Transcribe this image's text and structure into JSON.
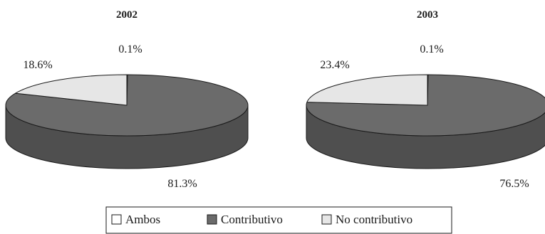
{
  "chart_data": {
    "type": "pie",
    "categories": [
      "Ambos",
      "Contributivo",
      "No contributivo"
    ],
    "colors": [
      "#ffffff",
      "#6b6b6b",
      "#e6e6e6"
    ],
    "legend_position": "bottom-center",
    "charts": [
      {
        "title": "2002",
        "values": [
          0.1,
          81.3,
          18.6
        ],
        "labels": [
          "0.1%",
          "81.3%",
          "18.6%"
        ]
      },
      {
        "title": "2003",
        "values": [
          0.1,
          76.5,
          23.4
        ],
        "labels": [
          "0.1%",
          "76.5%",
          "23.4%"
        ]
      }
    ]
  }
}
